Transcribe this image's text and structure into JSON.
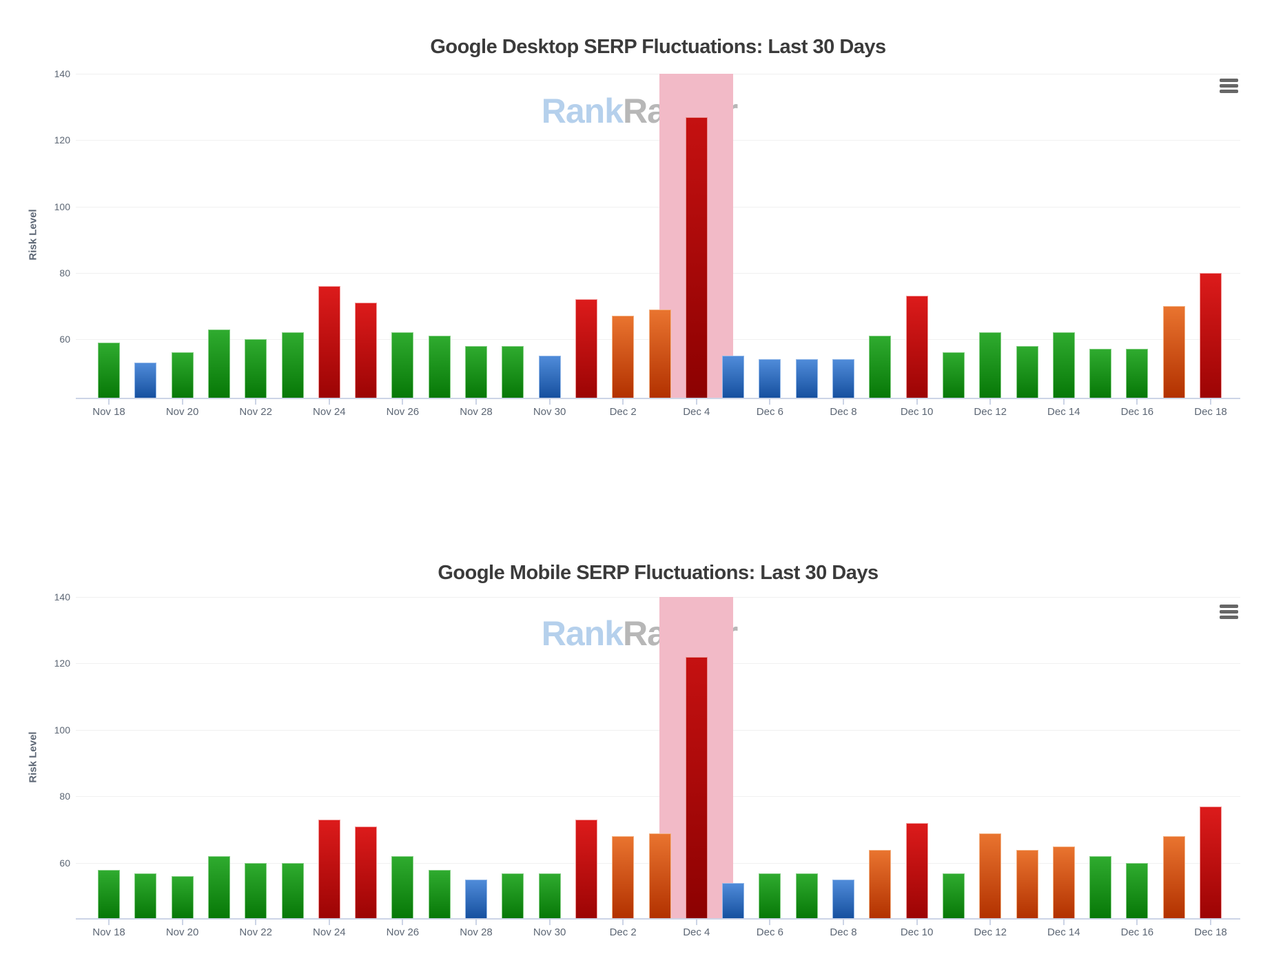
{
  "watermark": {
    "part1": "Rank",
    "part2": "Ranger"
  },
  "palette": {
    "green": {
      "top": "#2fab2f",
      "bottom": "#077807",
      "edge": "#86cf86"
    },
    "blue": {
      "top": "#4f8bd9",
      "bottom": "#16509f",
      "edge": "#93b8e8"
    },
    "red": {
      "top": "#dc1b1b",
      "bottom": "#9c0404",
      "edge": "#f29a9a"
    },
    "orange": {
      "top": "#e9742f",
      "bottom": "#b23100",
      "edge": "#f3b183"
    },
    "darkred": {
      "top": "#c51111",
      "bottom": "#8c0101",
      "edge": "#e89090"
    },
    "highlight_band": "#f2bac7",
    "grid_line": "#f0f0f0",
    "axis_line": "#ccd4e6",
    "tick_text": "#5c6674",
    "title_text": "#3b3b3b",
    "watermark_blue": "#b5d0ec",
    "watermark_gray": "#b7b7b7",
    "menu_icon_color": "#676767"
  },
  "chart_data": [
    {
      "type": "bar",
      "title": "Google Desktop SERP Fluctuations: Last 30 Days",
      "ylabel": "Risk Level",
      "xlabel": "",
      "ylim": [
        42,
        140
      ],
      "yticks": [
        60,
        80,
        100,
        120,
        140
      ],
      "grid": "horizontal",
      "legend": "none",
      "x_labels_every": 2,
      "categories": [
        "Nov 18",
        "Nov 19",
        "Nov 20",
        "Nov 21",
        "Nov 22",
        "Nov 23",
        "Nov 24",
        "Nov 25",
        "Nov 26",
        "Nov 27",
        "Nov 28",
        "Nov 29",
        "Nov 30",
        "Dec 1",
        "Dec 2",
        "Dec 3",
        "Dec 4",
        "Dec 5",
        "Dec 6",
        "Dec 7",
        "Dec 8",
        "Dec 9",
        "Dec 10",
        "Dec 11",
        "Dec 12",
        "Dec 13",
        "Dec 14",
        "Dec 15",
        "Dec 16",
        "Dec 17",
        "Dec 18"
      ],
      "values": [
        59,
        53,
        56,
        63,
        60,
        62,
        76,
        71,
        62,
        61,
        58,
        58,
        55,
        72,
        67,
        69,
        127,
        55,
        54,
        54,
        54,
        61,
        73,
        56,
        62,
        58,
        62,
        57,
        57,
        70,
        80
      ],
      "colors": [
        "green",
        "blue",
        "green",
        "green",
        "green",
        "green",
        "red",
        "red",
        "green",
        "green",
        "green",
        "green",
        "blue",
        "red",
        "orange",
        "orange",
        "darkred",
        "blue",
        "blue",
        "blue",
        "blue",
        "green",
        "red",
        "green",
        "green",
        "green",
        "green",
        "green",
        "green",
        "orange",
        "red"
      ],
      "highlight": {
        "category": "Dec 4"
      }
    },
    {
      "type": "bar",
      "title": "Google Mobile SERP Fluctuations: Last 30 Days",
      "ylabel": "Risk Level",
      "xlabel": "",
      "ylim": [
        42,
        140
      ],
      "yticks": [
        60,
        80,
        100,
        120,
        140
      ],
      "grid": "horizontal",
      "legend": "none",
      "x_labels_every": 2,
      "categories": [
        "Nov 18",
        "Nov 19",
        "Nov 20",
        "Nov 21",
        "Nov 22",
        "Nov 23",
        "Nov 24",
        "Nov 25",
        "Nov 26",
        "Nov 27",
        "Nov 28",
        "Nov 29",
        "Nov 30",
        "Dec 1",
        "Dec 2",
        "Dec 3",
        "Dec 4",
        "Dec 5",
        "Dec 6",
        "Dec 7",
        "Dec 8",
        "Dec 9",
        "Dec 10",
        "Dec 11",
        "Dec 12",
        "Dec 13",
        "Dec 14",
        "Dec 15",
        "Dec 16",
        "Dec 17",
        "Dec 18"
      ],
      "values": [
        58,
        57,
        56,
        62,
        60,
        60,
        73,
        71,
        62,
        58,
        55,
        57,
        57,
        73,
        68,
        69,
        122,
        54,
        57,
        57,
        55,
        64,
        72,
        57,
        69,
        64,
        65,
        62,
        60,
        68,
        77
      ],
      "colors": [
        "green",
        "green",
        "green",
        "green",
        "green",
        "green",
        "red",
        "red",
        "green",
        "green",
        "blue",
        "green",
        "green",
        "red",
        "orange",
        "orange",
        "darkred",
        "blue",
        "green",
        "green",
        "blue",
        "orange",
        "red",
        "green",
        "orange",
        "orange",
        "orange",
        "green",
        "green",
        "orange",
        "red"
      ],
      "highlight": {
        "category": "Dec 4"
      }
    }
  ]
}
